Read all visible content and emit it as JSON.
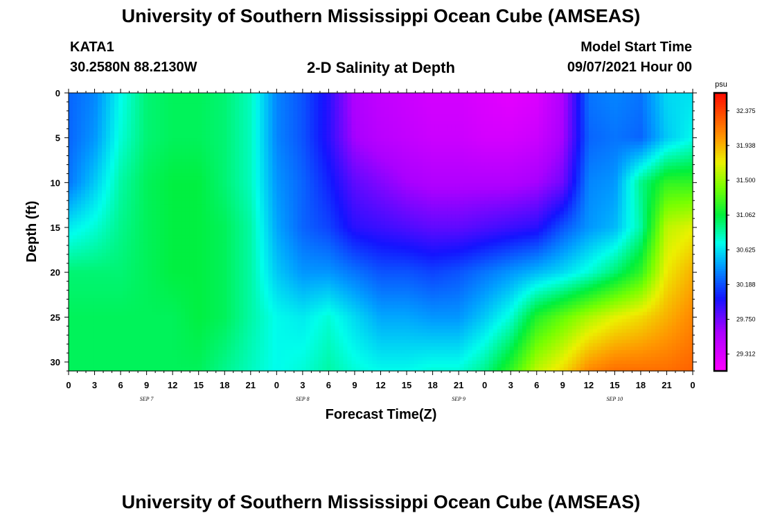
{
  "page": {
    "title_top": "University of Southern Mississippi Ocean Cube (AMSEAS)",
    "title_bottom": "University of Southern Mississippi Ocean Cube (AMSEAS)",
    "station_id": "KATA1",
    "station_coords": "30.2580N  88.2130W",
    "model_start_label": "Model Start Time",
    "model_start_value": "09/07/2021 Hour 00"
  },
  "chart_data": {
    "type": "heatmap",
    "title": "2-D Salinity at Depth",
    "xlabel": "Forecast Time(Z)",
    "ylabel": "Depth (ft)",
    "x_range_hours": [
      0,
      72
    ],
    "y_range_ft": [
      0,
      31
    ],
    "y_ticks": [
      0,
      5,
      10,
      15,
      20,
      25,
      30
    ],
    "x_tick_labels": [
      "0",
      "3",
      "6",
      "9",
      "12",
      "15",
      "18",
      "21",
      "0",
      "3",
      "6",
      "9",
      "12",
      "15",
      "18",
      "21",
      "0",
      "3",
      "6",
      "9",
      "12",
      "15",
      "18",
      "21",
      "0"
    ],
    "day_labels": [
      {
        "text": "SEP 7",
        "hour": 9
      },
      {
        "text": "SEP 8",
        "hour": 27
      },
      {
        "text": "SEP 9",
        "hour": 45
      },
      {
        "text": "SEP 10",
        "hour": 63
      }
    ],
    "colorbar": {
      "unit": "psu",
      "min": 29.1,
      "max": 32.6,
      "labels": [
        "32.375",
        "31.938",
        "31.500",
        "31.062",
        "30.625",
        "30.188",
        "29.750",
        "29.312"
      ]
    },
    "salinity_grid": {
      "hours": [
        0,
        3,
        6,
        9,
        12,
        15,
        18,
        21,
        24,
        27,
        30,
        33,
        36,
        39,
        42,
        45,
        48,
        51,
        54,
        57,
        60,
        63,
        66,
        69,
        72
      ],
      "depths_ft": [
        0,
        5,
        10,
        15,
        20,
        25,
        31
      ],
      "rows": [
        [
          30.25,
          30.35,
          30.7,
          30.95,
          31.0,
          31.0,
          30.95,
          30.8,
          30.35,
          30.2,
          29.95,
          29.55,
          29.45,
          29.4,
          29.35,
          29.35,
          29.3,
          29.25,
          29.3,
          29.55,
          30.3,
          30.35,
          30.3,
          30.6,
          30.62
        ],
        [
          30.25,
          30.4,
          30.75,
          30.95,
          31.0,
          31.0,
          30.95,
          30.8,
          30.35,
          30.2,
          29.95,
          29.6,
          29.5,
          29.45,
          29.4,
          29.4,
          29.35,
          29.35,
          29.4,
          29.6,
          30.25,
          30.3,
          30.25,
          30.55,
          30.7
        ],
        [
          30.3,
          30.55,
          30.85,
          31.0,
          31.05,
          31.05,
          30.95,
          30.8,
          30.4,
          30.25,
          30.05,
          29.8,
          29.7,
          29.6,
          29.55,
          29.55,
          29.55,
          29.55,
          29.6,
          29.75,
          30.35,
          30.4,
          30.9,
          31.2,
          31.2
        ],
        [
          30.65,
          30.75,
          30.9,
          31.0,
          31.05,
          31.05,
          31.0,
          30.85,
          30.45,
          30.25,
          30.15,
          29.95,
          29.9,
          29.85,
          29.8,
          29.8,
          29.85,
          29.9,
          29.95,
          30.2,
          30.4,
          30.5,
          30.85,
          31.6,
          31.7
        ],
        [
          30.95,
          30.95,
          30.95,
          31.0,
          31.05,
          31.05,
          31.0,
          30.85,
          30.55,
          30.4,
          30.4,
          30.3,
          30.2,
          30.2,
          30.15,
          30.2,
          30.3,
          30.4,
          30.5,
          30.6,
          30.75,
          30.95,
          31.2,
          31.75,
          31.95
        ],
        [
          31.0,
          31.0,
          31.0,
          31.0,
          31.0,
          31.05,
          31.0,
          30.85,
          30.7,
          30.65,
          30.75,
          30.6,
          30.45,
          30.45,
          30.4,
          30.4,
          30.55,
          30.75,
          31.15,
          31.35,
          31.55,
          31.7,
          31.8,
          31.95,
          32.1
        ],
        [
          31.0,
          31.0,
          31.0,
          31.0,
          31.0,
          31.0,
          30.9,
          30.8,
          30.7,
          30.75,
          30.85,
          30.75,
          30.7,
          30.7,
          30.75,
          30.75,
          30.9,
          31.2,
          31.6,
          31.8,
          32.1,
          32.2,
          32.2,
          32.2,
          32.25
        ]
      ]
    }
  }
}
